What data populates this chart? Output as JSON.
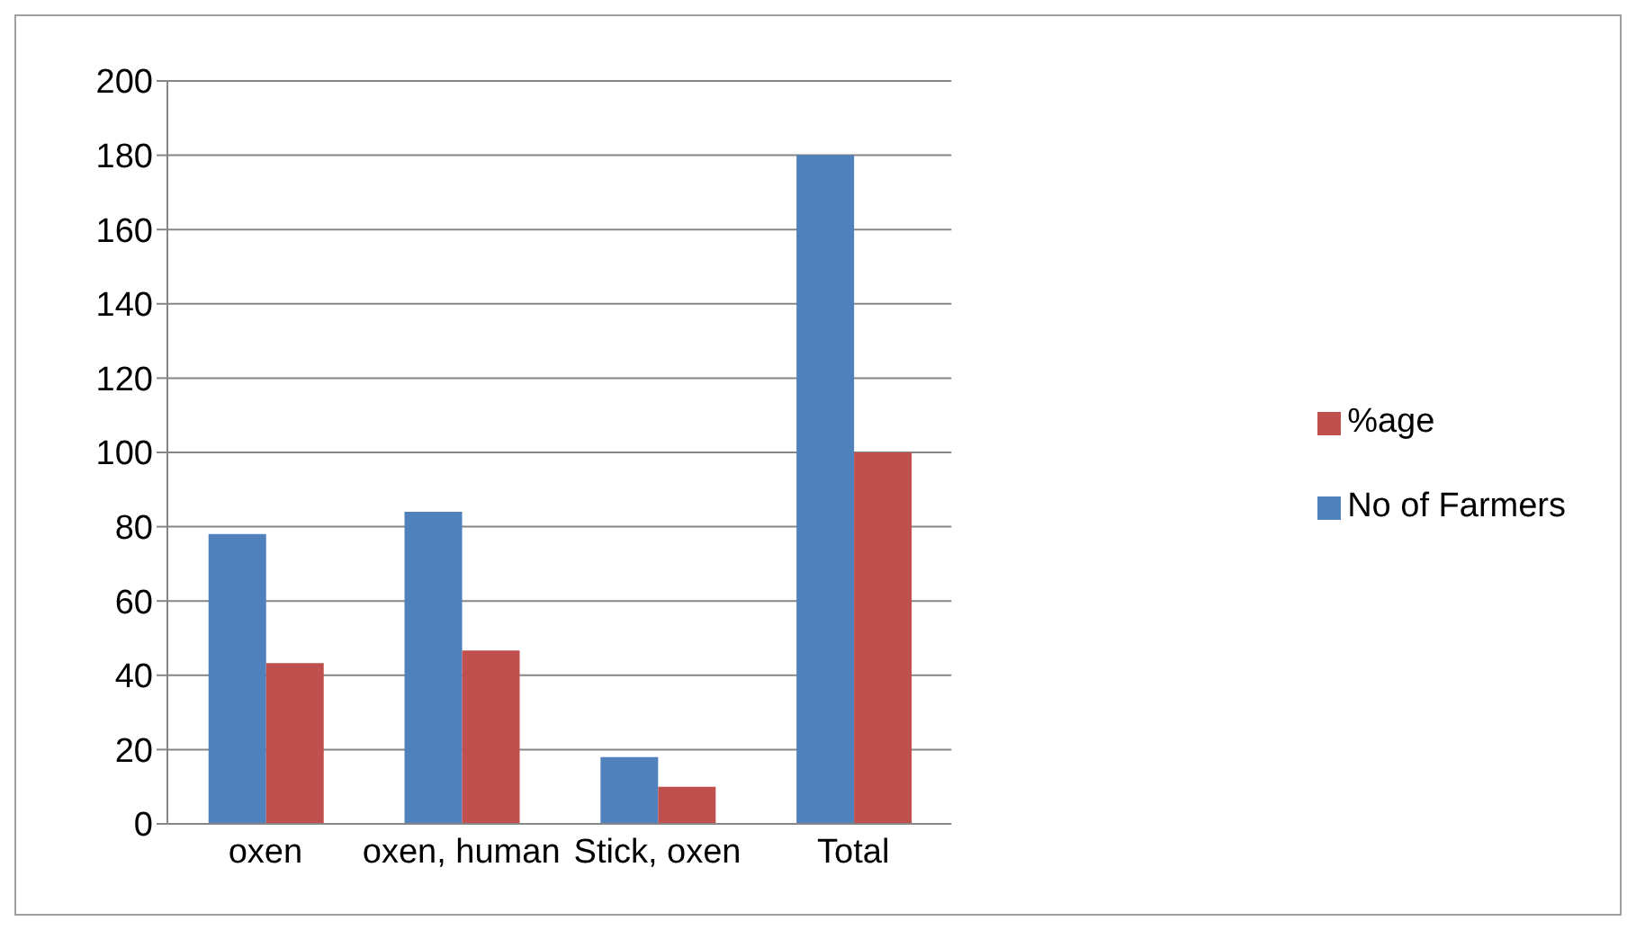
{
  "chart_data": {
    "type": "bar",
    "categories": [
      "oxen",
      "oxen, human",
      "Stick, oxen",
      "Total"
    ],
    "series": [
      {
        "name": "No of Farmers",
        "color": "#4f81bd",
        "values": [
          78,
          84,
          18,
          180
        ]
      },
      {
        "name": "%age",
        "color": "#c0504d",
        "values": [
          43.3,
          46.7,
          10,
          100
        ]
      }
    ],
    "ylim": [
      0,
      200
    ],
    "yticks": [
      0,
      20,
      40,
      60,
      80,
      100,
      120,
      140,
      160,
      180,
      200
    ],
    "grid": "y",
    "legend": "right"
  }
}
